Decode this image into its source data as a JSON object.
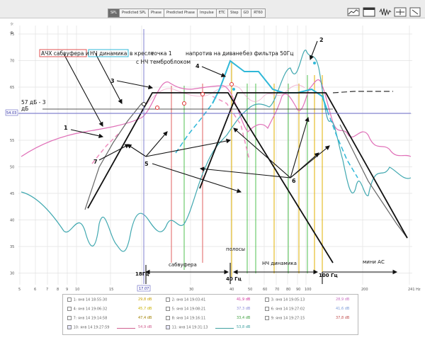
{
  "tabs": [
    {
      "label": "SPL",
      "active": true
    },
    {
      "label": "Predicted SPL",
      "active": false
    },
    {
      "label": "Phase",
      "active": false
    },
    {
      "label": "Predicted Phase",
      "active": false
    },
    {
      "label": "Impulse",
      "active": false
    },
    {
      "label": "ETC",
      "active": false
    },
    {
      "label": "Step",
      "active": false
    },
    {
      "label": "GD",
      "active": false
    },
    {
      "label": "RT60",
      "active": false
    }
  ],
  "toolbar_icons": [
    "graph-settings-icon",
    "window-icon",
    "waveform-icon",
    "zoom-icon",
    "scale-icon"
  ],
  "plot": {
    "y_ticks": [
      "75",
      "70",
      "65",
      "60",
      "55",
      "50",
      "45",
      "40",
      "35",
      "30"
    ],
    "y_cursor_label": "54.03",
    "x_ticks": [
      "5",
      "6",
      "7",
      "8",
      "9",
      "10",
      "15",
      "20",
      "30",
      "40",
      "50",
      "60",
      "70",
      "80",
      "90",
      "100",
      "200",
      "241 Hz"
    ],
    "x_cursor_label": "17.07",
    "annotations": {
      "left_label_1": "АЧХ сабвуфера и",
      "left_label_2": "НЧ динамика",
      "left_label_3": "в кресле",
      "point1": "точка 1",
      "point1_sub": "с НЧ темброблоком",
      "sofa": "напротив на диване",
      "nofilter": "без фильтра 50Гц",
      "db_label_1": "57 дБ - 3",
      "db_label_2": "дБ",
      "n1": "1",
      "n2": "2",
      "n3": "3",
      "n4": "4",
      "n5": "5",
      "n6": "6",
      "n7": "7",
      "bands": "полосы",
      "sub_band": "сабвуфера",
      "nch_band": "НЧ динамика",
      "mini_band": "мини АС",
      "f18": "18Гц",
      "f40": "40 Гц",
      "f100": "100 Гц"
    }
  },
  "legend": {
    "rows": [
      {
        "cells": [
          {
            "num": "1:",
            "ts": "янв 14 18:55:30",
            "db": "29,8 dB",
            "color": "#c8a000"
          },
          {
            "num": "2:",
            "ts": "янв 14 19:03:41",
            "db": "41,9 dB",
            "color": "#d0309a"
          },
          {
            "num": "3:",
            "ts": "янв 14 19:05:13",
            "db": "28,9 dB",
            "color": "#c870c0"
          }
        ]
      },
      {
        "cells": [
          {
            "num": "4:",
            "ts": "янв 14 19:06:32",
            "db": "45,7 dB",
            "color": "#c8b000"
          },
          {
            "num": "5:",
            "ts": "янв 14 19:08:21",
            "db": "37,3 dB",
            "color": "#8a8ad8"
          },
          {
            "num": "6:",
            "ts": "янв 14 19:27:02",
            "db": "41,6 dB",
            "color": "#7a9ad8"
          }
        ]
      },
      {
        "cells": [
          {
            "num": "7:",
            "ts": "янв 14 19:14:58",
            "db": "47,4 dB",
            "color": "#a08000"
          },
          {
            "num": "8:",
            "ts": "янв 14 19:16:11",
            "db": "33,4 dB",
            "color": "#40a040"
          },
          {
            "num": "9:",
            "ts": "янв 14 19:27:15",
            "db": "37,8 dB",
            "color": "#c05050"
          }
        ]
      },
      {
        "cells": [
          {
            "num": "10:",
            "ts": "янв 14 19:27:59",
            "db": "54,9 dB",
            "color": "#d06090",
            "checked": true
          },
          {
            "num": "11:",
            "ts": "янв 14 19:31:13",
            "db": "53,8 dB",
            "color": "#40a0a0",
            "checked": true
          },
          {
            "num": "",
            "ts": "",
            "db": "",
            "color": ""
          }
        ]
      }
    ]
  }
}
